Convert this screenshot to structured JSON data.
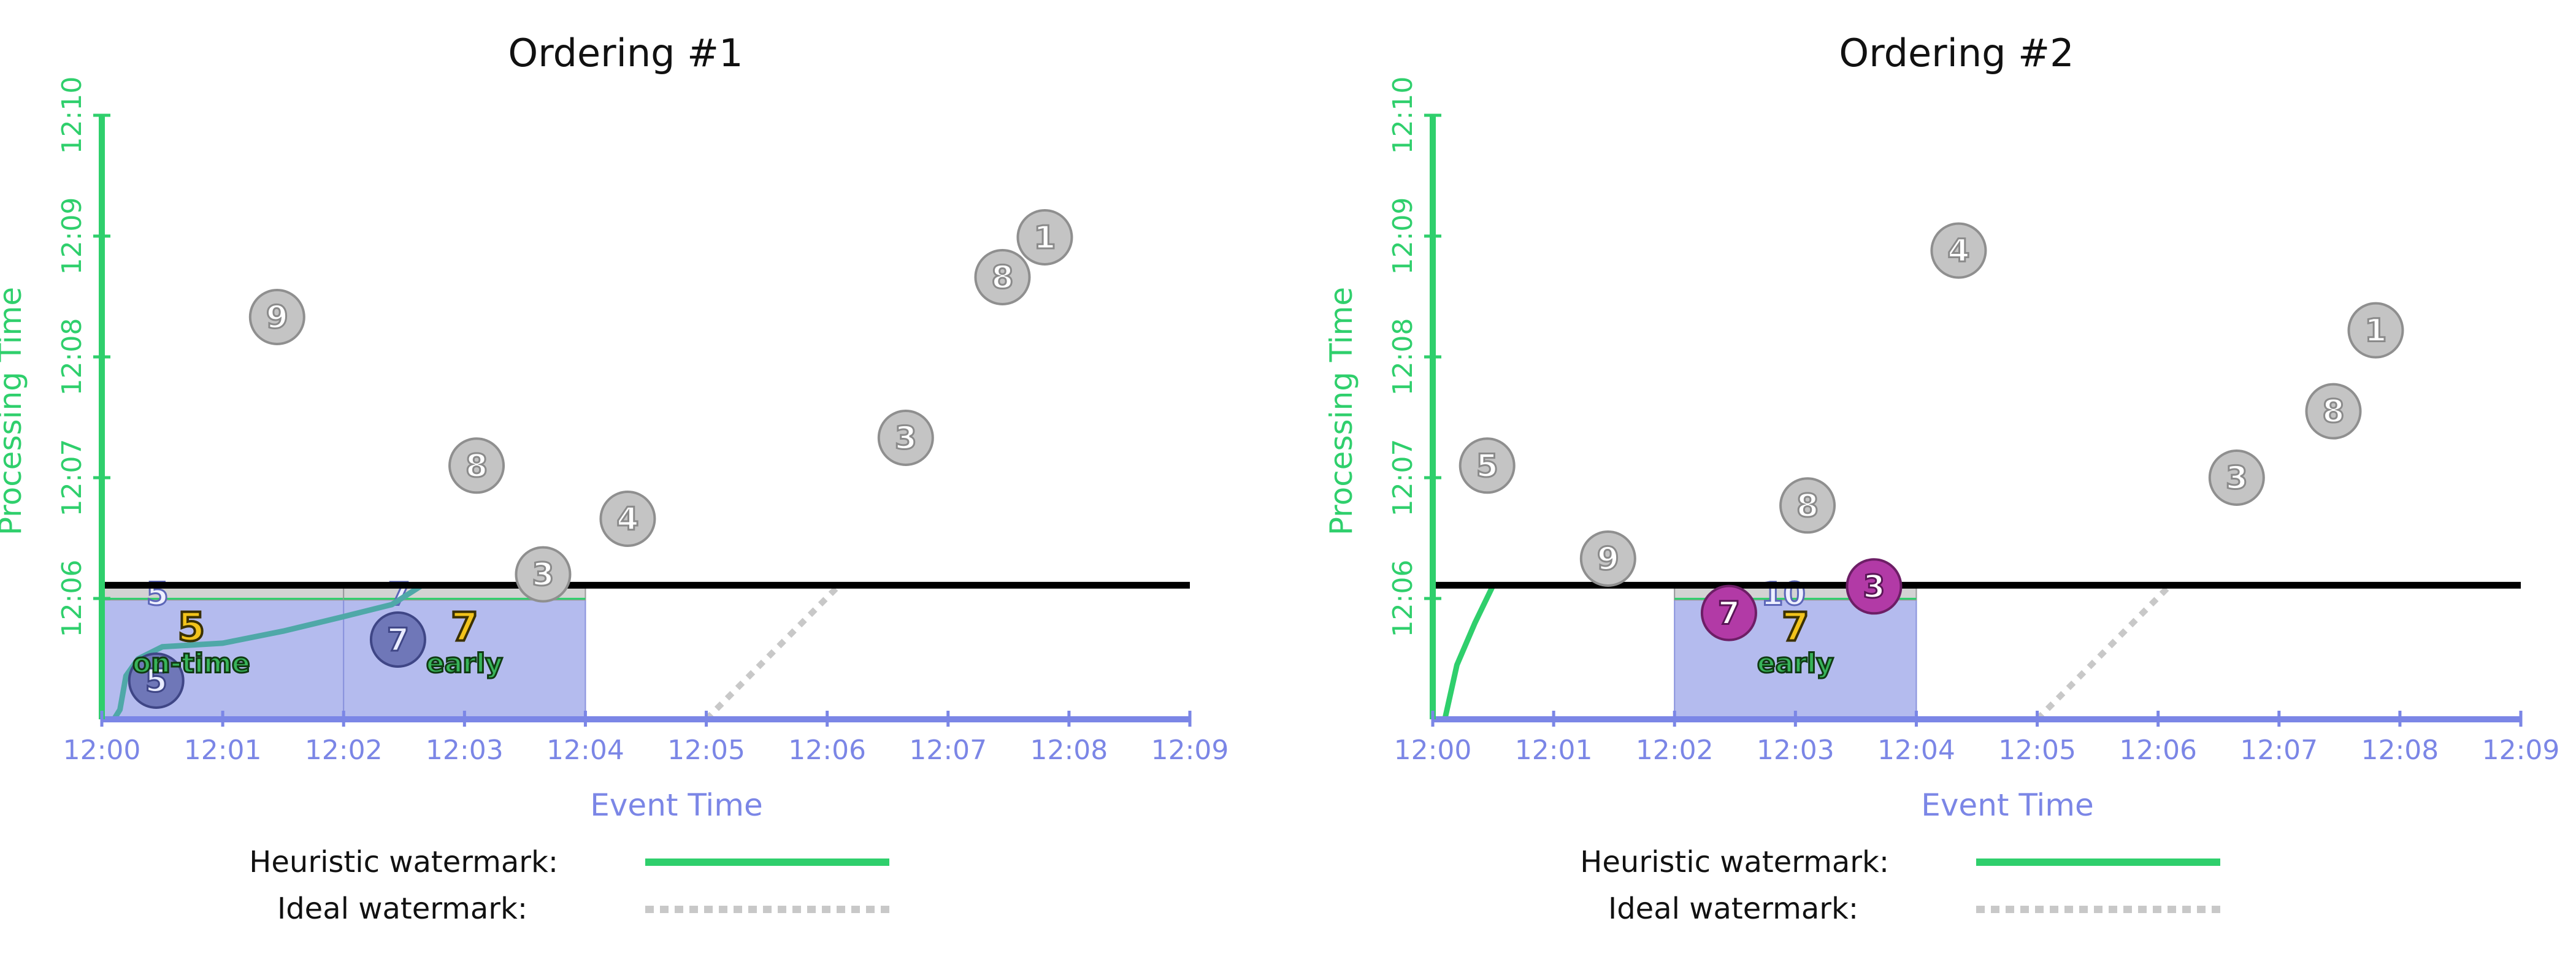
{
  "colors": {
    "event_axis": "#7b86e6",
    "processing_axis": "#2fcf6c",
    "pane_fill": "#b4bbee",
    "pending_point": "#c4c4c4",
    "in_pane_point": "#6f77b8",
    "late_point": "#b23aa6",
    "heuristic_watermark": "#2fcf6c",
    "curve": "#4fa8a8",
    "ideal_watermark": "#c8c8c8",
    "current_time_line": "#000000",
    "annotation_value": "#f2c31b",
    "annotation_tag": "#38b45a"
  },
  "legend": {
    "heuristic": "Heuristic watermark:",
    "ideal": "Ideal watermark:"
  },
  "chart_data": [
    {
      "type": "scatter",
      "title": "Ordering #1",
      "xlabel": "Event Time",
      "ylabel": "Processing Time",
      "x_ticks": [
        "12:00",
        "12:01",
        "12:02",
        "12:03",
        "12:04",
        "12:05",
        "12:06",
        "12:07",
        "12:08",
        "12:09"
      ],
      "y_ticks": [
        "12:06",
        "12:07",
        "12:08",
        "12:09",
        "12:10"
      ],
      "xlim": [
        0,
        9
      ],
      "ylim": [
        5,
        10
      ],
      "current_processing_time": 6.11,
      "windows": [
        {
          "start": 0,
          "end": 2,
          "visible_result": "5",
          "annotation_value": "5",
          "annotation_tag": "on-time"
        },
        {
          "start": 2,
          "end": 4,
          "visible_result": "7",
          "annotation_value": "7",
          "annotation_tag": "early"
        }
      ],
      "points": [
        {
          "value": "5",
          "x": 0.45,
          "y": 5.32,
          "state": "in-pane"
        },
        {
          "value": "9",
          "x": 1.45,
          "y": 8.33,
          "state": "pending"
        },
        {
          "value": "7",
          "x": 2.45,
          "y": 5.66,
          "state": "in-pane"
        },
        {
          "value": "8",
          "x": 3.1,
          "y": 7.1,
          "state": "pending"
        },
        {
          "value": "3",
          "x": 3.65,
          "y": 6.2,
          "state": "pending"
        },
        {
          "value": "4",
          "x": 4.35,
          "y": 6.66,
          "state": "pending"
        },
        {
          "value": "3",
          "x": 6.65,
          "y": 7.33,
          "state": "pending"
        },
        {
          "value": "8",
          "x": 7.45,
          "y": 8.66,
          "state": "pending"
        },
        {
          "value": "1",
          "x": 7.8,
          "y": 8.99,
          "state": "pending"
        }
      ],
      "heuristic_watermark": [
        [
          0.1,
          5.0
        ],
        [
          0.15,
          5.08
        ],
        [
          0.2,
          5.36
        ],
        [
          0.3,
          5.5
        ],
        [
          0.5,
          5.6
        ],
        [
          1.0,
          5.63
        ],
        [
          1.5,
          5.73
        ],
        [
          2.0,
          5.85
        ],
        [
          2.4,
          5.95
        ],
        [
          2.65,
          6.11
        ]
      ],
      "ideal_watermark": [
        [
          5.0,
          5.0
        ],
        [
          6.1,
          6.11
        ]
      ]
    },
    {
      "type": "scatter",
      "title": "Ordering #2",
      "xlabel": "Event Time",
      "ylabel": "Processing Time",
      "x_ticks": [
        "12:00",
        "12:01",
        "12:02",
        "12:03",
        "12:04",
        "12:05",
        "12:06",
        "12:07",
        "12:08",
        "12:09"
      ],
      "y_ticks": [
        "12:06",
        "12:07",
        "12:08",
        "12:09",
        "12:10"
      ],
      "xlim": [
        0,
        9
      ],
      "ylim": [
        5,
        10
      ],
      "current_processing_time": 6.11,
      "windows": [
        {
          "start": 2,
          "end": 4,
          "visible_result": "10",
          "annotation_value": "7",
          "annotation_tag": "early"
        }
      ],
      "points": [
        {
          "value": "5",
          "x": 0.45,
          "y": 7.1,
          "state": "pending"
        },
        {
          "value": "9",
          "x": 1.45,
          "y": 6.33,
          "state": "pending"
        },
        {
          "value": "7",
          "x": 2.45,
          "y": 5.88,
          "state": "late"
        },
        {
          "value": "8",
          "x": 3.1,
          "y": 6.77,
          "state": "pending"
        },
        {
          "value": "3",
          "x": 3.65,
          "y": 6.1,
          "state": "late"
        },
        {
          "value": "4",
          "x": 4.35,
          "y": 8.88,
          "state": "pending"
        },
        {
          "value": "3",
          "x": 6.65,
          "y": 7.0,
          "state": "pending"
        },
        {
          "value": "8",
          "x": 7.45,
          "y": 7.55,
          "state": "pending"
        },
        {
          "value": "1",
          "x": 7.8,
          "y": 8.22,
          "state": "pending"
        }
      ],
      "heuristic_watermark": [
        [
          0.1,
          5.0
        ],
        [
          0.2,
          5.45
        ],
        [
          0.35,
          5.8
        ],
        [
          0.5,
          6.11
        ]
      ],
      "ideal_watermark": [
        [
          5.0,
          5.0
        ],
        [
          6.1,
          6.11
        ]
      ]
    }
  ]
}
